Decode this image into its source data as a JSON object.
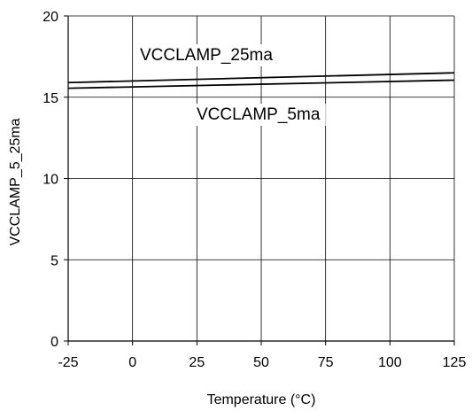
{
  "chart_data": {
    "type": "line",
    "title": "",
    "xlabel": "Temperature (°C)",
    "ylabel": "VCCLAMP_5_25ma",
    "xlim": [
      -25,
      125
    ],
    "ylim": [
      0,
      20
    ],
    "xticks": [
      -25,
      0,
      25,
      50,
      75,
      100,
      125
    ],
    "yticks": [
      0,
      5,
      10,
      15,
      20
    ],
    "grid": true,
    "legend": "none",
    "series": [
      {
        "name": "VCCLAMP_25ma",
        "x": [
          -25,
          125
        ],
        "y": [
          15.9,
          16.5
        ],
        "color": "#000000"
      },
      {
        "name": "VCCLAMP_5ma",
        "x": [
          -25,
          125
        ],
        "y": [
          15.55,
          16.05
        ],
        "color": "#000000"
      }
    ]
  }
}
